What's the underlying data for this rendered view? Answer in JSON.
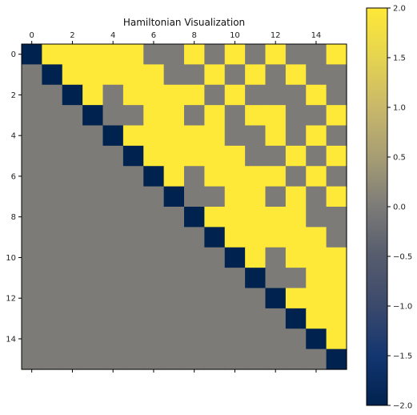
{
  "chart_data": {
    "type": "heatmap",
    "title": "Hamiltonian Visualization",
    "xlabel": "",
    "ylabel": "",
    "x_ticks": [
      0,
      2,
      4,
      6,
      8,
      10,
      12,
      14
    ],
    "y_ticks": [
      0,
      2,
      4,
      6,
      8,
      10,
      12,
      14
    ],
    "x_tick_labels": [
      "0",
      "2",
      "4",
      "6",
      "8",
      "10",
      "12",
      "14"
    ],
    "y_tick_labels": [
      "0",
      "2",
      "4",
      "6",
      "8",
      "10",
      "12",
      "14"
    ],
    "x_axis_position": "top",
    "grid": false,
    "colormap": "cividis",
    "colorbar": {
      "range": [
        -2.0,
        2.0
      ],
      "ticks": [
        2.0,
        1.5,
        1.0,
        0.5,
        0.0,
        -0.5,
        -1.0,
        -1.5,
        -2.0
      ],
      "tick_labels": [
        "2.0",
        "1.5",
        "1.0",
        "0.5",
        "0.0",
        "−0.5",
        "−1.0",
        "−1.5",
        "−2.0"
      ],
      "position": "right"
    },
    "matrix": [
      [
        -2,
        2,
        2,
        2,
        2,
        2,
        0,
        0,
        2,
        0,
        2,
        0,
        2,
        0,
        0,
        2
      ],
      [
        0,
        -2,
        2,
        2,
        2,
        2,
        2,
        0,
        0,
        2,
        0,
        2,
        0,
        2,
        0,
        0
      ],
      [
        0,
        0,
        -2,
        2,
        0,
        2,
        2,
        2,
        2,
        0,
        2,
        0,
        0,
        0,
        2,
        0
      ],
      [
        0,
        0,
        0,
        -2,
        0,
        0,
        2,
        2,
        0,
        2,
        0,
        2,
        2,
        0,
        0,
        2
      ],
      [
        0,
        0,
        0,
        0,
        -2,
        2,
        2,
        2,
        2,
        2,
        0,
        0,
        2,
        0,
        2,
        0
      ],
      [
        0,
        0,
        0,
        0,
        0,
        -2,
        2,
        2,
        2,
        2,
        2,
        0,
        0,
        2,
        0,
        2
      ],
      [
        0,
        0,
        0,
        0,
        0,
        0,
        -2,
        2,
        0,
        2,
        2,
        2,
        2,
        0,
        2,
        0
      ],
      [
        0,
        0,
        0,
        0,
        0,
        0,
        0,
        -2,
        0,
        0,
        2,
        2,
        0,
        2,
        0,
        2
      ],
      [
        0,
        0,
        0,
        0,
        0,
        0,
        0,
        0,
        -2,
        2,
        2,
        2,
        2,
        2,
        0,
        0
      ],
      [
        0,
        0,
        0,
        0,
        0,
        0,
        0,
        0,
        0,
        -2,
        2,
        2,
        2,
        2,
        2,
        0
      ],
      [
        0,
        0,
        0,
        0,
        0,
        0,
        0,
        0,
        0,
        0,
        -2,
        2,
        0,
        2,
        2,
        2
      ],
      [
        0,
        0,
        0,
        0,
        0,
        0,
        0,
        0,
        0,
        0,
        0,
        -2,
        0,
        0,
        2,
        2
      ],
      [
        0,
        0,
        0,
        0,
        0,
        0,
        0,
        0,
        0,
        0,
        0,
        0,
        -2,
        2,
        2,
        2
      ],
      [
        0,
        0,
        0,
        0,
        0,
        0,
        0,
        0,
        0,
        0,
        0,
        0,
        0,
        -2,
        2,
        2
      ],
      [
        0,
        0,
        0,
        0,
        0,
        0,
        0,
        0,
        0,
        0,
        0,
        0,
        0,
        0,
        -2,
        2
      ],
      [
        0,
        0,
        0,
        0,
        0,
        0,
        0,
        0,
        0,
        0,
        0,
        0,
        0,
        0,
        0,
        -2
      ]
    ],
    "colors": {
      "min": "#00224e",
      "mid": "#7c7b78",
      "max": "#fee838"
    }
  }
}
